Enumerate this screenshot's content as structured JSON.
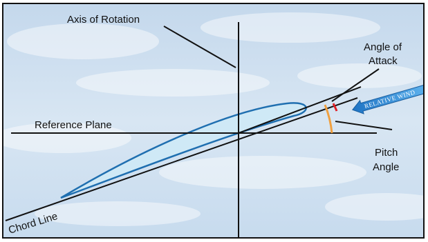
{
  "labels": {
    "axis_of_rotation": "Axis of Rotation",
    "angle_of_attack_line1": "Angle of",
    "angle_of_attack_line2": "Attack",
    "reference_plane": "Reference Plane",
    "pitch_angle_line1": "Pitch",
    "pitch_angle_line2": "Angle",
    "chord_line": "Chord Line",
    "relative_wind": "RELATIVE WIND"
  },
  "colors": {
    "sky": "#cfe0f0",
    "airfoil_fill": "#cfe9f6",
    "airfoil_stroke": "#1f6fb0",
    "line": "#111111",
    "angle_of_attack_arc": "#e01e24",
    "pitch_angle_arc": "#f0a040",
    "wind_arrow": "#2f8fd8"
  }
}
